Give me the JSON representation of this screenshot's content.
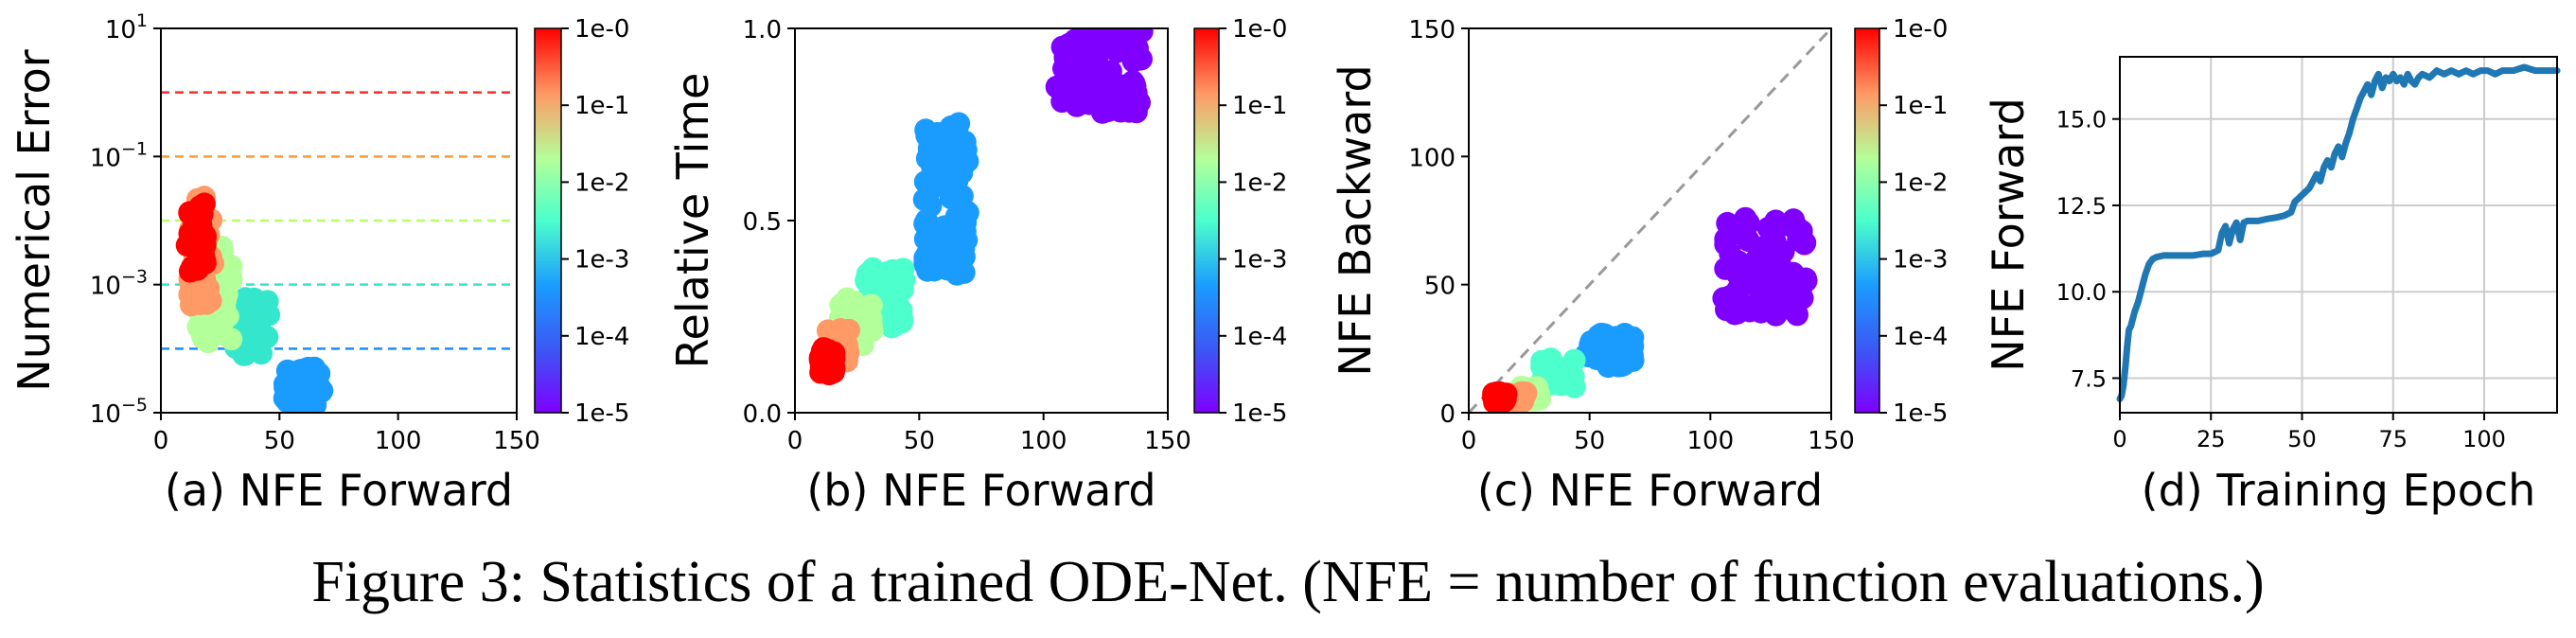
{
  "caption": "Figure 3: Statistics of a trained ODE-Net. (NFE = number of function evaluations.)",
  "colorbar": {
    "ticks": [
      "1e-0",
      "1e-1",
      "1e-2",
      "1e-3",
      "1e-4",
      "1e-5"
    ],
    "colors": [
      "#ff0000",
      "#ff9966",
      "#b3ff99",
      "#4cffcc",
      "#1a9cff",
      "#7f00ff"
    ]
  },
  "chart_data": [
    {
      "type": "scatter",
      "xlabel": "(a) NFE Forward",
      "ylabel": "Numerical Error",
      "xlim": [
        0,
        150
      ],
      "ylim_log10": [
        -5,
        1
      ],
      "yscale": "log",
      "xticks": [
        "0",
        "50",
        "100",
        "150"
      ],
      "yticks": [
        {
          "value": -5,
          "base": "10",
          "exp": "−5"
        },
        {
          "value": -3,
          "base": "10",
          "exp": "−3"
        },
        {
          "value": -1,
          "base": "10",
          "exp": "−1"
        },
        {
          "value": 1,
          "base": "10",
          "exp": "1"
        }
      ],
      "reference_lines": [
        {
          "tolerance": "1e-0",
          "y_log10": 0,
          "color": "#ff2a2a"
        },
        {
          "tolerance": "1e-1",
          "y_log10": -1,
          "color": "#ff9933"
        },
        {
          "tolerance": "1e-2",
          "y_log10": -2,
          "color": "#b3ff66"
        },
        {
          "tolerance": "1e-3",
          "y_log10": -3,
          "color": "#33e6cc"
        },
        {
          "tolerance": "1e-4",
          "y_log10": -4,
          "color": "#1a8cff"
        }
      ],
      "clusters": [
        {
          "tolerance": "1e-5",
          "color": "#1a9cff",
          "x_range": [
            52,
            68
          ],
          "y_log10_range": [
            -5,
            -4.3
          ],
          "n": 60
        },
        {
          "tolerance": "1e-4",
          "color": "#33e6cc",
          "x_range": [
            30,
            46
          ],
          "y_log10_range": [
            -4.1,
            -3.2
          ],
          "n": 45
        },
        {
          "tolerance": "1e-3",
          "color": "#b3ff99",
          "x_range": [
            15,
            30
          ],
          "y_log10_range": [
            -3.9,
            -2.4
          ],
          "n": 60
        },
        {
          "tolerance": "1e-2",
          "color": "#ff9966",
          "x_range": [
            12,
            22
          ],
          "y_log10_range": [
            -3.4,
            -1.6
          ],
          "n": 40
        },
        {
          "tolerance": "1e-1",
          "color": "#ff0000",
          "x_range": [
            11,
            19
          ],
          "y_log10_range": [
            -2.8,
            -1.7
          ],
          "n": 40
        }
      ]
    },
    {
      "type": "scatter",
      "xlabel": "(b) NFE Forward",
      "ylabel": "Relative Time",
      "xlim": [
        0,
        150
      ],
      "ylim": [
        0,
        1
      ],
      "xticks": [
        "0",
        "50",
        "100",
        "150"
      ],
      "yticks": [
        {
          "value": 0,
          "label": "0.0"
        },
        {
          "value": 0.5,
          "label": "0.5"
        },
        {
          "value": 1,
          "label": "1.0"
        }
      ],
      "clusters": [
        {
          "tolerance": "1e-5",
          "color": "#7f00ff",
          "x_range": [
            105,
            140
          ],
          "y_range": [
            0.78,
            1.0
          ],
          "n": 90
        },
        {
          "tolerance": "1e-4",
          "color": "#1a9cff",
          "x_range": [
            52,
            70
          ],
          "y_range": [
            0.36,
            0.77
          ],
          "n": 90
        },
        {
          "tolerance": "1e-3",
          "color": "#4cffcc",
          "x_range": [
            28,
            44
          ],
          "y_range": [
            0.22,
            0.38
          ],
          "n": 50
        },
        {
          "tolerance": "1e-2",
          "color": "#b3ff99",
          "x_range": [
            18,
            32
          ],
          "y_range": [
            0.17,
            0.3
          ],
          "n": 45
        },
        {
          "tolerance": "1e-1",
          "color": "#ff9966",
          "x_range": [
            13,
            22
          ],
          "y_range": [
            0.13,
            0.22
          ],
          "n": 30
        },
        {
          "tolerance": "1e-0",
          "color": "#ff0000",
          "x_range": [
            10,
            16
          ],
          "y_range": [
            0.1,
            0.17
          ],
          "n": 35
        }
      ]
    },
    {
      "type": "scatter",
      "xlabel": "(c) NFE Forward",
      "ylabel": "NFE Backward",
      "xlim": [
        0,
        150
      ],
      "ylim": [
        0,
        150
      ],
      "xticks": [
        "0",
        "50",
        "100",
        "150"
      ],
      "yticks": [
        {
          "value": 0,
          "label": "0"
        },
        {
          "value": 50,
          "label": "50"
        },
        {
          "value": 100,
          "label": "100"
        },
        {
          "value": 150,
          "label": "150"
        }
      ],
      "diagonal_reference": true,
      "clusters": [
        {
          "tolerance": "1e-5",
          "color": "#7f00ff",
          "x_range": [
            105,
            140
          ],
          "y_range": [
            38,
            76
          ],
          "n": 90
        },
        {
          "tolerance": "1e-4",
          "color": "#1a9cff",
          "x_range": [
            48,
            68
          ],
          "y_range": [
            18,
            32
          ],
          "n": 60
        },
        {
          "tolerance": "1e-3",
          "color": "#4cffcc",
          "x_range": [
            28,
            44
          ],
          "y_range": [
            10,
            22
          ],
          "n": 40
        },
        {
          "tolerance": "1e-2",
          "color": "#b3ff99",
          "x_range": [
            20,
            30
          ],
          "y_range": [
            5,
            10
          ],
          "n": 25
        },
        {
          "tolerance": "1e-1",
          "color": "#ff9966",
          "x_range": [
            15,
            24
          ],
          "y_range": [
            4,
            8
          ],
          "n": 20
        },
        {
          "tolerance": "1e-0",
          "color": "#ff0000",
          "x_range": [
            10,
            16
          ],
          "y_range": [
            4,
            8
          ],
          "n": 20
        }
      ]
    },
    {
      "type": "line",
      "xlabel": "(d) Training Epoch",
      "ylabel": "NFE Forward",
      "xlim": [
        0,
        120
      ],
      "ylim": [
        6.5,
        16.8
      ],
      "grid": true,
      "xticks": [
        {
          "value": 0,
          "label": "0"
        },
        {
          "value": 25,
          "label": "25"
        },
        {
          "value": 50,
          "label": "50"
        },
        {
          "value": 75,
          "label": "75"
        },
        {
          "value": 100,
          "label": "100"
        }
      ],
      "yticks": [
        {
          "value": 7.5,
          "label": "7.5"
        },
        {
          "value": 10,
          "label": "10.0"
        },
        {
          "value": 12.5,
          "label": "12.5"
        },
        {
          "value": 15,
          "label": "15.0"
        }
      ],
      "color": "#1f77b4",
      "x": [
        0,
        0.5,
        1,
        1.5,
        2,
        2.5,
        3,
        4,
        5,
        6,
        7,
        8,
        9,
        10,
        12,
        15,
        18,
        20,
        23,
        25,
        27,
        28,
        29,
        30,
        31,
        32,
        33,
        34,
        35,
        38,
        40,
        43,
        45,
        47,
        48,
        49,
        50,
        51,
        52,
        53,
        54,
        55,
        56,
        57,
        58,
        59,
        60,
        61,
        62,
        63,
        64,
        65,
        66,
        67,
        68,
        69,
        70,
        71,
        72,
        73,
        74,
        75,
        76,
        77,
        78,
        79,
        80,
        81,
        82,
        83,
        85,
        87,
        89,
        91,
        93,
        95,
        97,
        99,
        101,
        103,
        105,
        108,
        111,
        114,
        117,
        120
      ],
      "y": [
        6.9,
        7.0,
        7.3,
        7.8,
        8.4,
        8.9,
        9.0,
        9.4,
        9.7,
        10.1,
        10.5,
        10.8,
        10.95,
        11.0,
        11.05,
        11.05,
        11.05,
        11.05,
        11.1,
        11.1,
        11.2,
        11.7,
        11.9,
        11.4,
        11.8,
        12.0,
        11.5,
        12.0,
        12.05,
        12.05,
        12.1,
        12.15,
        12.2,
        12.3,
        12.6,
        12.7,
        12.8,
        12.9,
        13.0,
        13.2,
        13.4,
        13.2,
        13.6,
        13.8,
        13.6,
        14.0,
        14.2,
        13.9,
        14.3,
        14.6,
        15.0,
        15.3,
        15.6,
        15.8,
        16.0,
        15.7,
        16.1,
        16.3,
        15.9,
        16.2,
        16.1,
        16.3,
        16.1,
        16.2,
        16.0,
        16.3,
        16.1,
        16.0,
        16.2,
        16.3,
        16.2,
        16.4,
        16.3,
        16.4,
        16.3,
        16.4,
        16.3,
        16.4,
        16.4,
        16.3,
        16.4,
        16.4,
        16.5,
        16.4,
        16.4,
        16.4
      ]
    }
  ]
}
